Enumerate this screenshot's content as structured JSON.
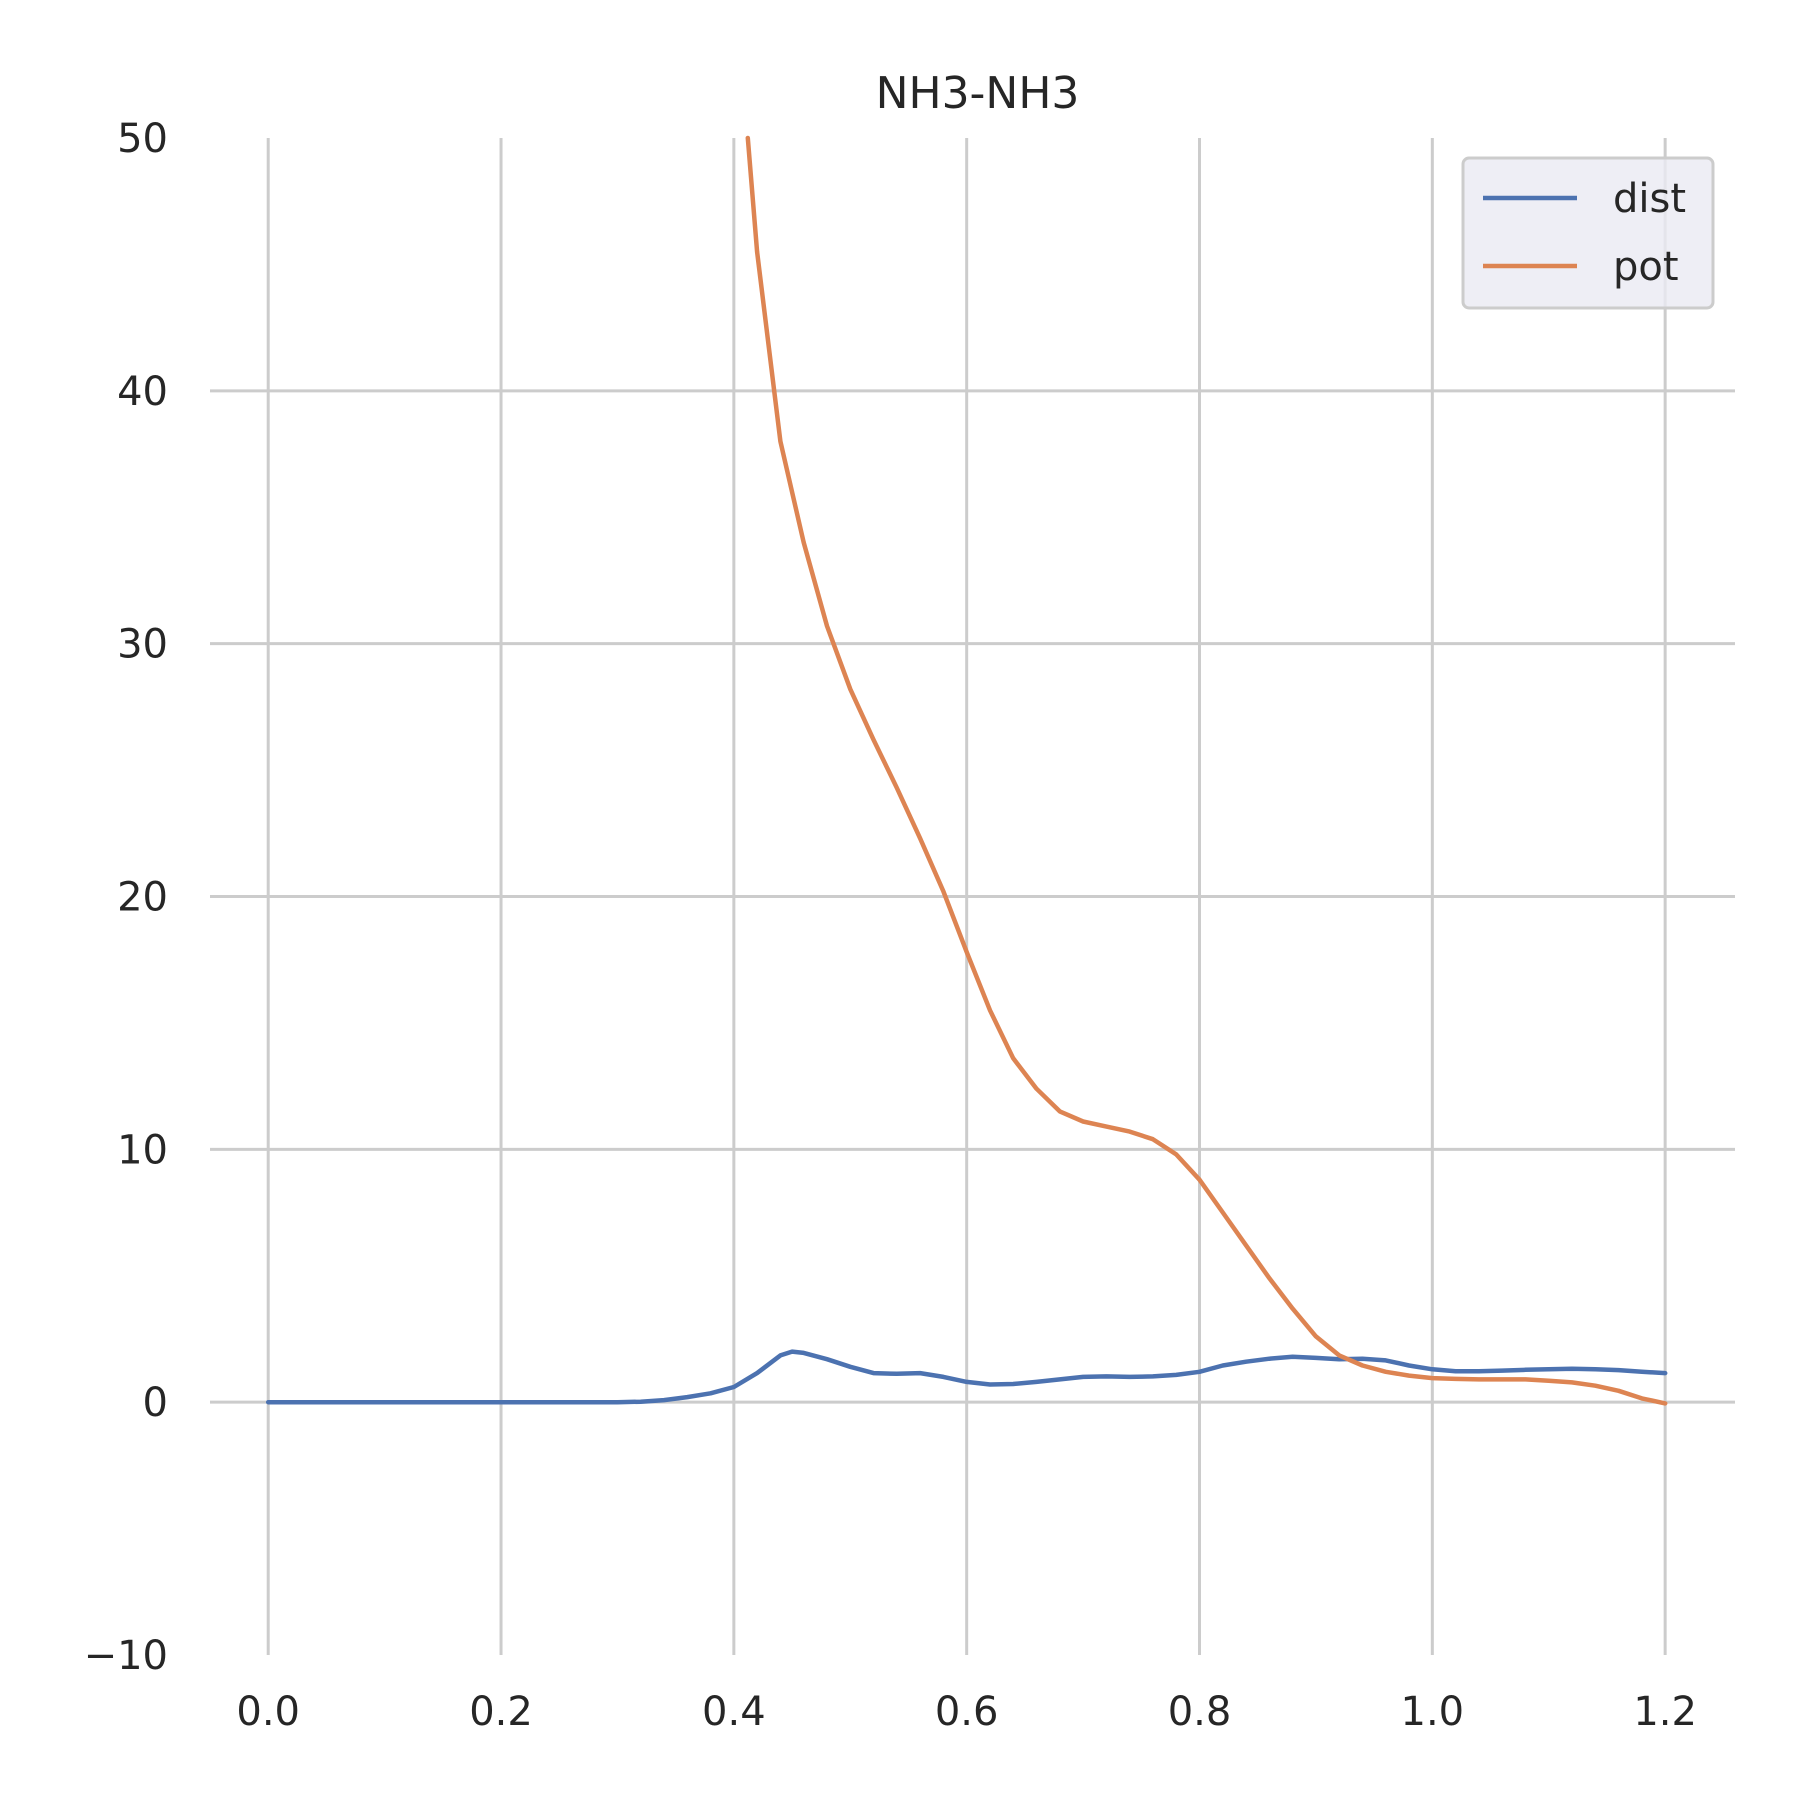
{
  "chart_data": {
    "type": "line",
    "title": "NH3-NH3",
    "xlabel": "",
    "ylabel": "",
    "xlim": [
      -0.05,
      1.26
    ],
    "ylim": [
      -10,
      50
    ],
    "xticks": [
      0.0,
      0.2,
      0.4,
      0.6,
      0.8,
      1.0,
      1.2
    ],
    "xtick_labels": [
      "0.0",
      "0.2",
      "0.4",
      "0.6",
      "0.8",
      "1.0",
      "1.2"
    ],
    "yticks": [
      -10,
      0,
      10,
      20,
      30,
      40,
      50
    ],
    "ytick_labels": [
      "−10",
      "0",
      "10",
      "20",
      "30",
      "40",
      "50"
    ],
    "grid": true,
    "legend_position": "top-right",
    "series": [
      {
        "name": "dist",
        "color": "#4c72b0",
        "x": [
          0.0,
          0.1,
          0.2,
          0.3,
          0.32,
          0.34,
          0.36,
          0.38,
          0.4,
          0.42,
          0.44,
          0.45,
          0.46,
          0.48,
          0.5,
          0.52,
          0.54,
          0.56,
          0.58,
          0.6,
          0.62,
          0.64,
          0.66,
          0.68,
          0.7,
          0.72,
          0.74,
          0.76,
          0.78,
          0.8,
          0.82,
          0.84,
          0.86,
          0.88,
          0.9,
          0.92,
          0.94,
          0.96,
          0.98,
          1.0,
          1.02,
          1.04,
          1.06,
          1.08,
          1.1,
          1.12,
          1.14,
          1.16,
          1.18,
          1.2
        ],
        "y": [
          0.0,
          0.0,
          0.0,
          0.0,
          0.02,
          0.08,
          0.2,
          0.35,
          0.6,
          1.15,
          1.85,
          2.0,
          1.95,
          1.7,
          1.4,
          1.15,
          1.12,
          1.15,
          1.0,
          0.8,
          0.7,
          0.72,
          0.8,
          0.9,
          1.0,
          1.02,
          1.0,
          1.02,
          1.08,
          1.2,
          1.45,
          1.6,
          1.72,
          1.8,
          1.75,
          1.7,
          1.72,
          1.65,
          1.45,
          1.3,
          1.22,
          1.22,
          1.25,
          1.28,
          1.3,
          1.32,
          1.3,
          1.27,
          1.2,
          1.15
        ]
      },
      {
        "name": "pot",
        "color": "#dd8452",
        "x": [
          0.412,
          0.42,
          0.44,
          0.46,
          0.48,
          0.5,
          0.52,
          0.54,
          0.56,
          0.58,
          0.6,
          0.62,
          0.64,
          0.66,
          0.68,
          0.7,
          0.72,
          0.74,
          0.76,
          0.78,
          0.8,
          0.82,
          0.84,
          0.86,
          0.88,
          0.9,
          0.92,
          0.94,
          0.96,
          0.98,
          1.0,
          1.02,
          1.04,
          1.06,
          1.08,
          1.1,
          1.12,
          1.14,
          1.16,
          1.18,
          1.2
        ],
        "y": [
          50.0,
          45.5,
          38.0,
          34.0,
          30.7,
          28.2,
          26.2,
          24.3,
          22.3,
          20.2,
          17.8,
          15.5,
          13.6,
          12.4,
          11.5,
          11.1,
          10.9,
          10.7,
          10.4,
          9.8,
          8.8,
          7.5,
          6.2,
          4.9,
          3.7,
          2.6,
          1.85,
          1.45,
          1.2,
          1.05,
          0.95,
          0.92,
          0.9,
          0.9,
          0.9,
          0.85,
          0.78,
          0.65,
          0.45,
          0.15,
          -0.05
        ]
      }
    ]
  }
}
